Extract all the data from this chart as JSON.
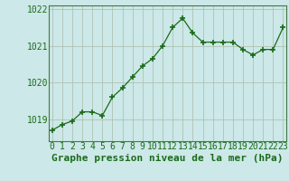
{
  "x": [
    0,
    1,
    2,
    3,
    4,
    5,
    6,
    7,
    8,
    9,
    10,
    11,
    12,
    13,
    14,
    15,
    16,
    17,
    18,
    19,
    20,
    21,
    22,
    23
  ],
  "y": [
    1018.7,
    1018.85,
    1018.95,
    1019.2,
    1019.2,
    1019.1,
    1019.6,
    1019.85,
    1020.15,
    1020.45,
    1020.65,
    1021.0,
    1021.5,
    1021.75,
    1021.35,
    1021.1,
    1021.1,
    1021.1,
    1021.1,
    1020.9,
    1020.75,
    1020.9,
    1020.9,
    1021.5
  ],
  "line_color": "#1a6b1a",
  "marker": "+",
  "marker_size": 4,
  "marker_linewidth": 1.2,
  "line_width": 0.9,
  "bg_color": "#cce8e8",
  "grid_color": "#aabbaa",
  "xlabel": "Graphe pression niveau de la mer (hPa)",
  "xlabel_fontsize": 8,
  "xlabel_color": "#1a6b1a",
  "tick_label_color": "#1a6b1a",
  "tick_fontsize": 7,
  "ylim": [
    1018.4,
    1022.1
  ],
  "yticks": [
    1019,
    1020,
    1021,
    1022
  ],
  "xticks": [
    0,
    1,
    2,
    3,
    4,
    5,
    6,
    7,
    8,
    9,
    10,
    11,
    12,
    13,
    14,
    15,
    16,
    17,
    18,
    19,
    20,
    21,
    22,
    23
  ],
  "xlim": [
    -0.3,
    23.3
  ],
  "spine_color": "#447744",
  "fig_width": 3.2,
  "fig_height": 2.0,
  "dpi": 100
}
